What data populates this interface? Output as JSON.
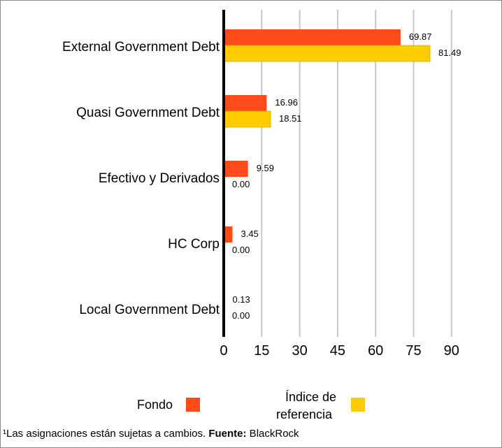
{
  "chart_data": {
    "type": "bar",
    "orientation": "horizontal",
    "categories": [
      "External Government Debt",
      "Quasi Government Debt",
      "Efectivo y Derivados",
      "HC Corp",
      "Local  Government Debt"
    ],
    "series": [
      {
        "name": "Fondo",
        "values": [
          69.87,
          16.96,
          9.59,
          3.45,
          0.13
        ],
        "labels": [
          "69.87",
          "16.96",
          "9.59",
          "3.45",
          "0.13"
        ],
        "color": "#ff4a1c"
      },
      {
        "name": "Índice de referencia",
        "values": [
          81.49,
          18.51,
          0.0,
          0.0,
          0.0
        ],
        "labels": [
          "81.49",
          "18.51",
          "0.00",
          "0.00",
          "0.00"
        ],
        "color": "#ffcc00"
      }
    ],
    "xlim": [
      0,
      90
    ],
    "xticks": [
      "0",
      "15",
      "30",
      "45",
      "60",
      "75",
      "90"
    ],
    "grid": true,
    "legend_position": "bottom"
  },
  "legend": {
    "fondo": "Fondo",
    "indice_line1": "Índice de",
    "indice_line2": "referencia"
  },
  "footnote": {
    "superscript": "¹",
    "text": "Las asignaciones están sujetas a cambios. ",
    "source_label": "Fuente:",
    "source_value": " BlackRock"
  },
  "colors": {
    "fondo": "#ff4a1c",
    "indice": "#ffcc00",
    "grid": "#c8c8c8",
    "axis": "#000000"
  }
}
